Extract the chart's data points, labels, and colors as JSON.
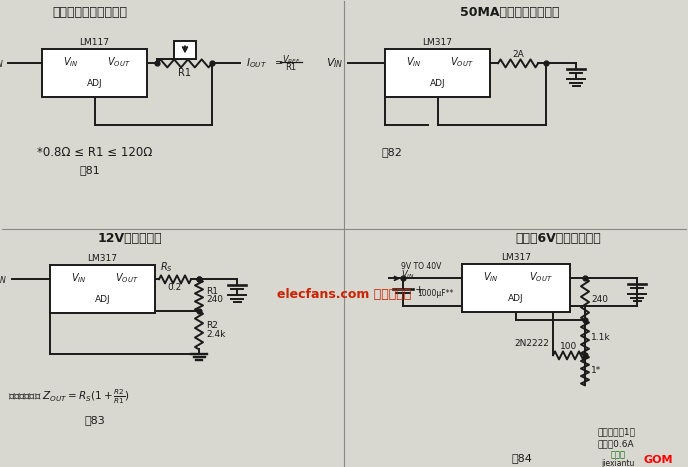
{
  "bg_color": "#d8d8d0",
  "cc": "#1a1a1a",
  "red_text": "#cc2200",
  "green_text": "#006600",
  "fig1_title": "小电流恒流电路及应用",
  "fig1_lm": "LM117",
  "fig1_note": "*0.8Ω ≤ R1 ≤ 120Ω",
  "fig1_label": "图81",
  "fig2_title": "50MA电池恒流充电电路",
  "fig2_lm": "LM317",
  "fig2_label": "图82",
  "fig3_title": "12V电池充电器",
  "fig3_lm": "LM317",
  "fig3_label": "图83",
  "fig4_title": "小电流6V电池充电电路",
  "fig4_lm": "LM317",
  "fig4_note1": "取样电阻为1欧",
  "fig4_note2": "电流约0.6A",
  "fig4_label": "图84",
  "watermark": "elecfans.com 电子发烧友",
  "footer_green": "捷锐图",
  "footer_black": "jiexiantu",
  "footer_red": "GOM"
}
